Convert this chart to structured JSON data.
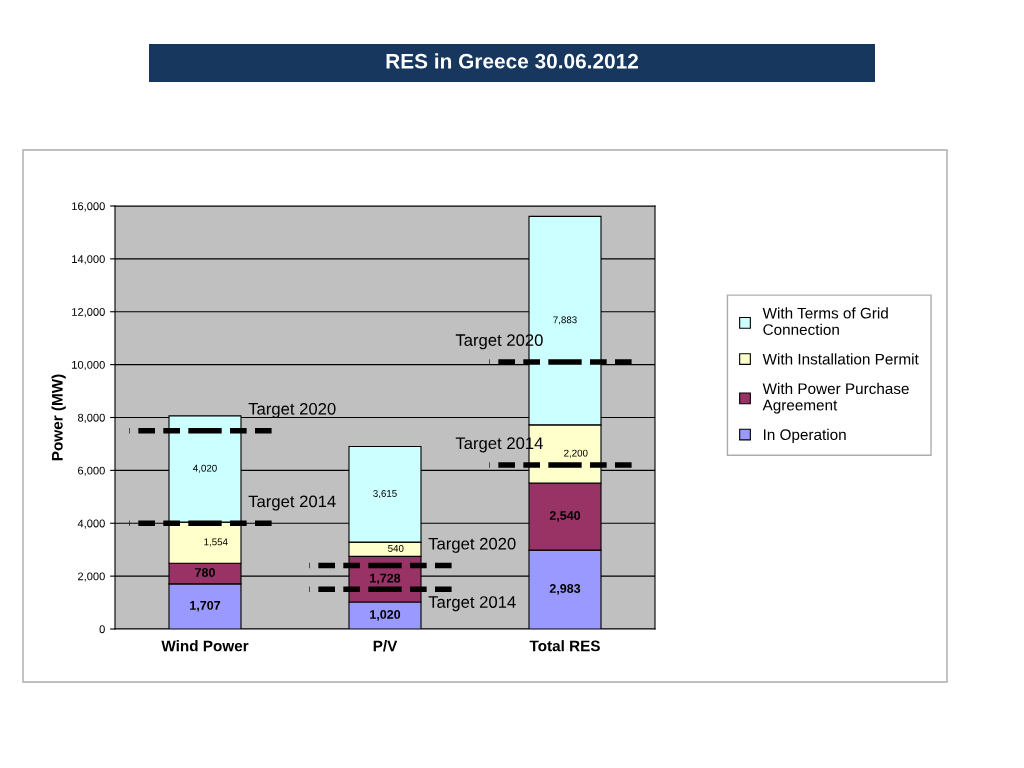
{
  "chart_data": {
    "type": "bar",
    "title": "RES in Greece 30.06.2012",
    "ylabel": "Power (MW)",
    "categories": [
      "Wind Power",
      "P/V",
      "Total RES"
    ],
    "stacked": true,
    "series": [
      {
        "name": "In Operation",
        "color": "#9999ff",
        "values": [
          1707,
          1020,
          2983
        ],
        "value_labels": [
          "1,707",
          "1,020",
          "2,983"
        ]
      },
      {
        "name": "With Power Purchase Agreement",
        "color": "#993366",
        "values": [
          780,
          1728,
          2540
        ],
        "value_labels": [
          "780",
          "1,728",
          "2,540"
        ]
      },
      {
        "name": "With Installation Permit",
        "color": "#ffffcc",
        "values": [
          1554,
          540,
          2200
        ],
        "value_labels": [
          "1,554",
          "540",
          "2,200"
        ]
      },
      {
        "name": "With Terms of Grid Connection",
        "color": "#ccffff",
        "values": [
          4020,
          3615,
          7883
        ],
        "value_labels": [
          "4,020",
          "3,615",
          "7,883"
        ]
      }
    ],
    "ref_lines": [
      {
        "axis": "y",
        "value": 7500,
        "label": "Target 2020",
        "color": "#000000",
        "line_style": "dashed"
      },
      {
        "axis": "y",
        "value": 4000,
        "label": "Target 2014",
        "color": "#000000",
        "line_style": "dashed"
      },
      {
        "axis": "y",
        "value": 2400,
        "label": "Target 2020",
        "color": "#000000",
        "line_style": "dashed"
      },
      {
        "axis": "y",
        "value": 1500,
        "label": "Target 2014",
        "color": "#000000",
        "line_style": "dashed"
      },
      {
        "axis": "y",
        "value": 10100,
        "label": "Target 2020",
        "color": "#000000",
        "line_style": "dashed"
      },
      {
        "axis": "y",
        "value": 6200,
        "label": "Target 2014",
        "color": "#000000",
        "line_style": "dashed"
      }
    ],
    "ylim": [
      0,
      16000
    ],
    "yticks": [
      {
        "value": 0,
        "label": "0"
      },
      {
        "value": 2000,
        "label": "2,000"
      },
      {
        "value": 4000,
        "label": "4,000"
      },
      {
        "value": 6000,
        "label": "6,000"
      },
      {
        "value": 8000,
        "label": "8,000"
      },
      {
        "value": 10000,
        "label": "10,000"
      },
      {
        "value": 12000,
        "label": "12,000"
      },
      {
        "value": 14000,
        "label": "14,000"
      },
      {
        "value": 16000,
        "label": "16,000"
      }
    ],
    "grid": "y",
    "legend": "right"
  }
}
